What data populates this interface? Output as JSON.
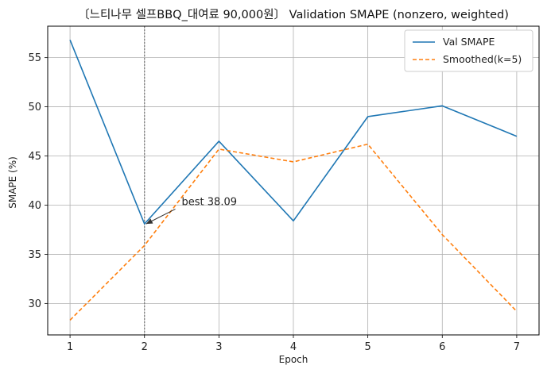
{
  "chart_data": {
    "type": "line",
    "title": "〔느티나무 셀프BBQ_대여료 90,000원〕 Validation SMAPE (nonzero, weighted)",
    "xlabel": "Epoch",
    "ylabel": "SMAPE (%)",
    "x": [
      1,
      2,
      3,
      4,
      5,
      6,
      7
    ],
    "xlim": [
      0.7,
      7.3
    ],
    "ylim": [
      26.8,
      58.2
    ],
    "xticks": [
      1,
      2,
      3,
      4,
      5,
      6,
      7
    ],
    "yticks": [
      30,
      35,
      40,
      45,
      50,
      55
    ],
    "grid": true,
    "legend_position": "top-right",
    "series": [
      {
        "name": "Val SMAPE",
        "values": [
          56.8,
          38.09,
          46.5,
          38.4,
          49.0,
          50.1,
          47.0
        ],
        "color": "#1f77b4",
        "style": "solid"
      },
      {
        "name": "Smoothed(k=5)",
        "values": [
          28.3,
          35.9,
          45.7,
          44.4,
          46.2,
          37.0,
          29.2
        ],
        "color": "#ff7f0e",
        "style": "dashed"
      }
    ],
    "best_epoch": 2,
    "annotation": {
      "text": "best 38.09",
      "x": 2,
      "y": 38.09,
      "text_x": 2.5,
      "text_y": 40.0
    }
  }
}
